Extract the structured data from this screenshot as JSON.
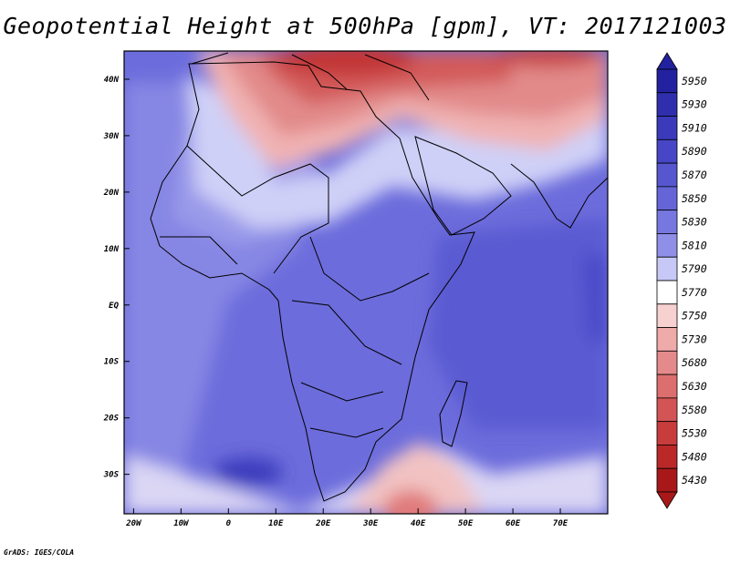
{
  "title": "Geopotential Height at 500hPa [gpm], VT: 2017121003",
  "credit": "GrADS: IGES/COLA",
  "map": {
    "lon_range": [
      -22,
      80
    ],
    "lat_range": [
      -37,
      45
    ],
    "lat_ticks": [
      {
        "lat": 40,
        "label": "40N"
      },
      {
        "lat": 30,
        "label": "30N"
      },
      {
        "lat": 20,
        "label": "20N"
      },
      {
        "lat": 10,
        "label": "10N"
      },
      {
        "lat": 0,
        "label": "EQ"
      },
      {
        "lat": -10,
        "label": "10S"
      },
      {
        "lat": -20,
        "label": "20S"
      },
      {
        "lat": -30,
        "label": "30S"
      }
    ],
    "lon_ticks": [
      {
        "lon": -20,
        "label": "20W"
      },
      {
        "lon": -10,
        "label": "10W"
      },
      {
        "lon": 0,
        "label": "0"
      },
      {
        "lon": 10,
        "label": "10E"
      },
      {
        "lon": 20,
        "label": "20E"
      },
      {
        "lon": 30,
        "label": "30E"
      },
      {
        "lon": 40,
        "label": "40E"
      },
      {
        "lon": 50,
        "label": "50E"
      },
      {
        "lon": 60,
        "label": "60E"
      },
      {
        "lon": 70,
        "label": "70E"
      }
    ]
  },
  "colorbar": {
    "levels": [
      {
        "label": "5950",
        "color": "#2222a0"
      },
      {
        "label": "5930",
        "color": "#2f2fae"
      },
      {
        "label": "5910",
        "color": "#3a3abb"
      },
      {
        "label": "5890",
        "color": "#4646c6"
      },
      {
        "label": "5870",
        "color": "#5656cf"
      },
      {
        "label": "5850",
        "color": "#6565d8"
      },
      {
        "label": "5830",
        "color": "#7777e0"
      },
      {
        "label": "5810",
        "color": "#8f8fe8"
      },
      {
        "label": "5790",
        "color": "#c8c8f6"
      },
      {
        "label": "5770",
        "color": "#ffffff"
      },
      {
        "label": "5750",
        "color": "#f7d0d0"
      },
      {
        "label": "5730",
        "color": "#efaaaa"
      },
      {
        "label": "5680",
        "color": "#e48a8a"
      },
      {
        "label": "5630",
        "color": "#dc6e6e"
      },
      {
        "label": "5580",
        "color": "#d35454"
      },
      {
        "label": "5530",
        "color": "#c93c3c"
      },
      {
        "label": "5480",
        "color": "#ba2828"
      },
      {
        "label": "5430",
        "color": "#a81818"
      }
    ]
  }
}
